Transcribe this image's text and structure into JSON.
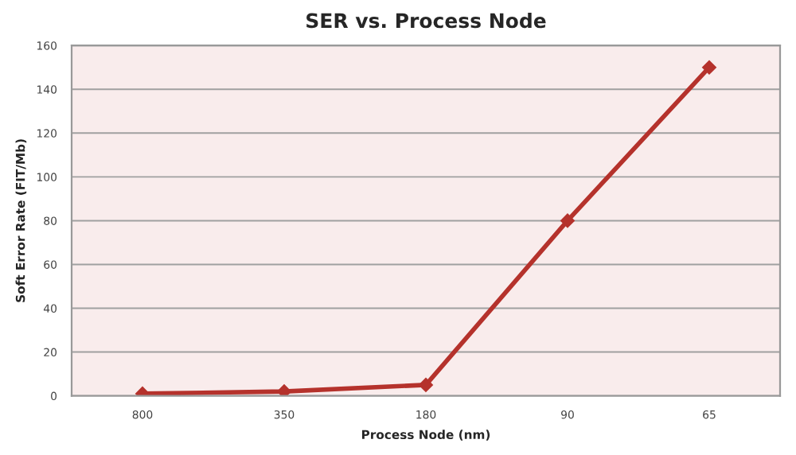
{
  "chart_data": {
    "type": "line",
    "title": "SER vs. Process Node",
    "xlabel": "Process Node (nm)",
    "ylabel": "Soft Error Rate (FIT/Mb)",
    "categories": [
      "800",
      "350",
      "180",
      "90",
      "65"
    ],
    "series": [
      {
        "color": "#b5322c",
        "values": [
          1,
          2,
          5,
          80,
          150
        ]
      }
    ],
    "ylim": [
      0,
      160
    ],
    "yticks": [
      0,
      20,
      40,
      60,
      80,
      100,
      120,
      140,
      160
    ],
    "grid": "y",
    "marker": "diamond",
    "legend": false
  }
}
